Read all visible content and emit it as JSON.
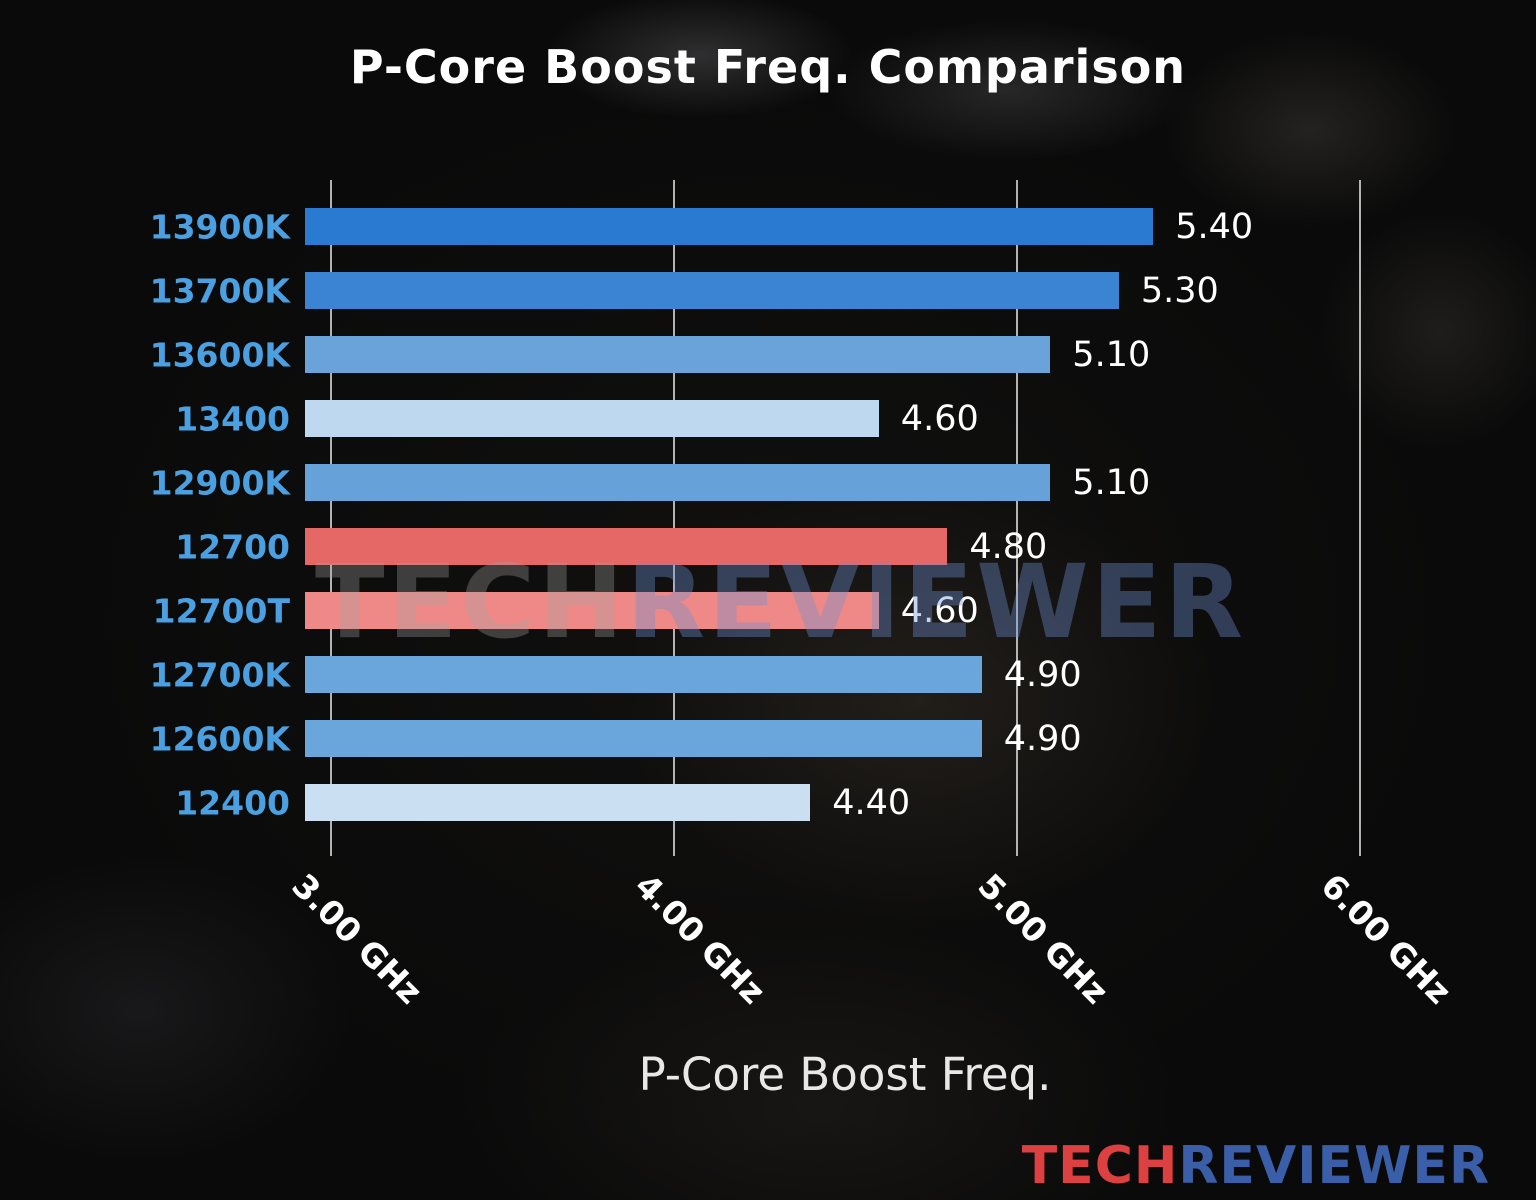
{
  "title": "P-Core Boost Freq. Comparison",
  "watermark": {
    "part1": "TECH",
    "part2": "REVIEWER"
  },
  "logo": {
    "part1": "TECH",
    "part2": "REVIEWER"
  },
  "chart_data": {
    "type": "bar",
    "orientation": "horizontal",
    "title": "P-Core Boost Freq. Comparison",
    "xlabel": "P-Core Boost Freq.",
    "ylabel": "",
    "grid": true,
    "xlim": [
      2.93,
      6.5
    ],
    "unit": "GHz",
    "categories": [
      "13900K",
      "13700K",
      "13600K",
      "13400",
      "12900K",
      "12700",
      "12700T",
      "12700K",
      "12600K",
      "12400"
    ],
    "values": [
      5.4,
      5.3,
      5.1,
      4.6,
      5.1,
      4.8,
      4.6,
      4.9,
      4.9,
      4.4
    ],
    "value_labels": [
      "5.40",
      "5.30",
      "5.10",
      "4.60",
      "5.10",
      "4.80",
      "4.60",
      "4.90",
      "4.90",
      "4.40"
    ],
    "bar_colors": [
      "#2a7ad2",
      "#3b84d4",
      "#6aa3da",
      "#bed8ef",
      "#67a1d9",
      "#e56766",
      "#ee8987",
      "#6aa5dc",
      "#6aa5dc",
      "#cbdff3"
    ],
    "category_label_color": "#4aa0e0",
    "ticks": [
      {
        "value": 3.0,
        "label": "3.00 GHz"
      },
      {
        "value": 4.0,
        "label": "4.00 GHz"
      },
      {
        "value": 5.0,
        "label": "5.00 GHz"
      },
      {
        "value": 6.0,
        "label": "6.00 GHz"
      }
    ]
  }
}
